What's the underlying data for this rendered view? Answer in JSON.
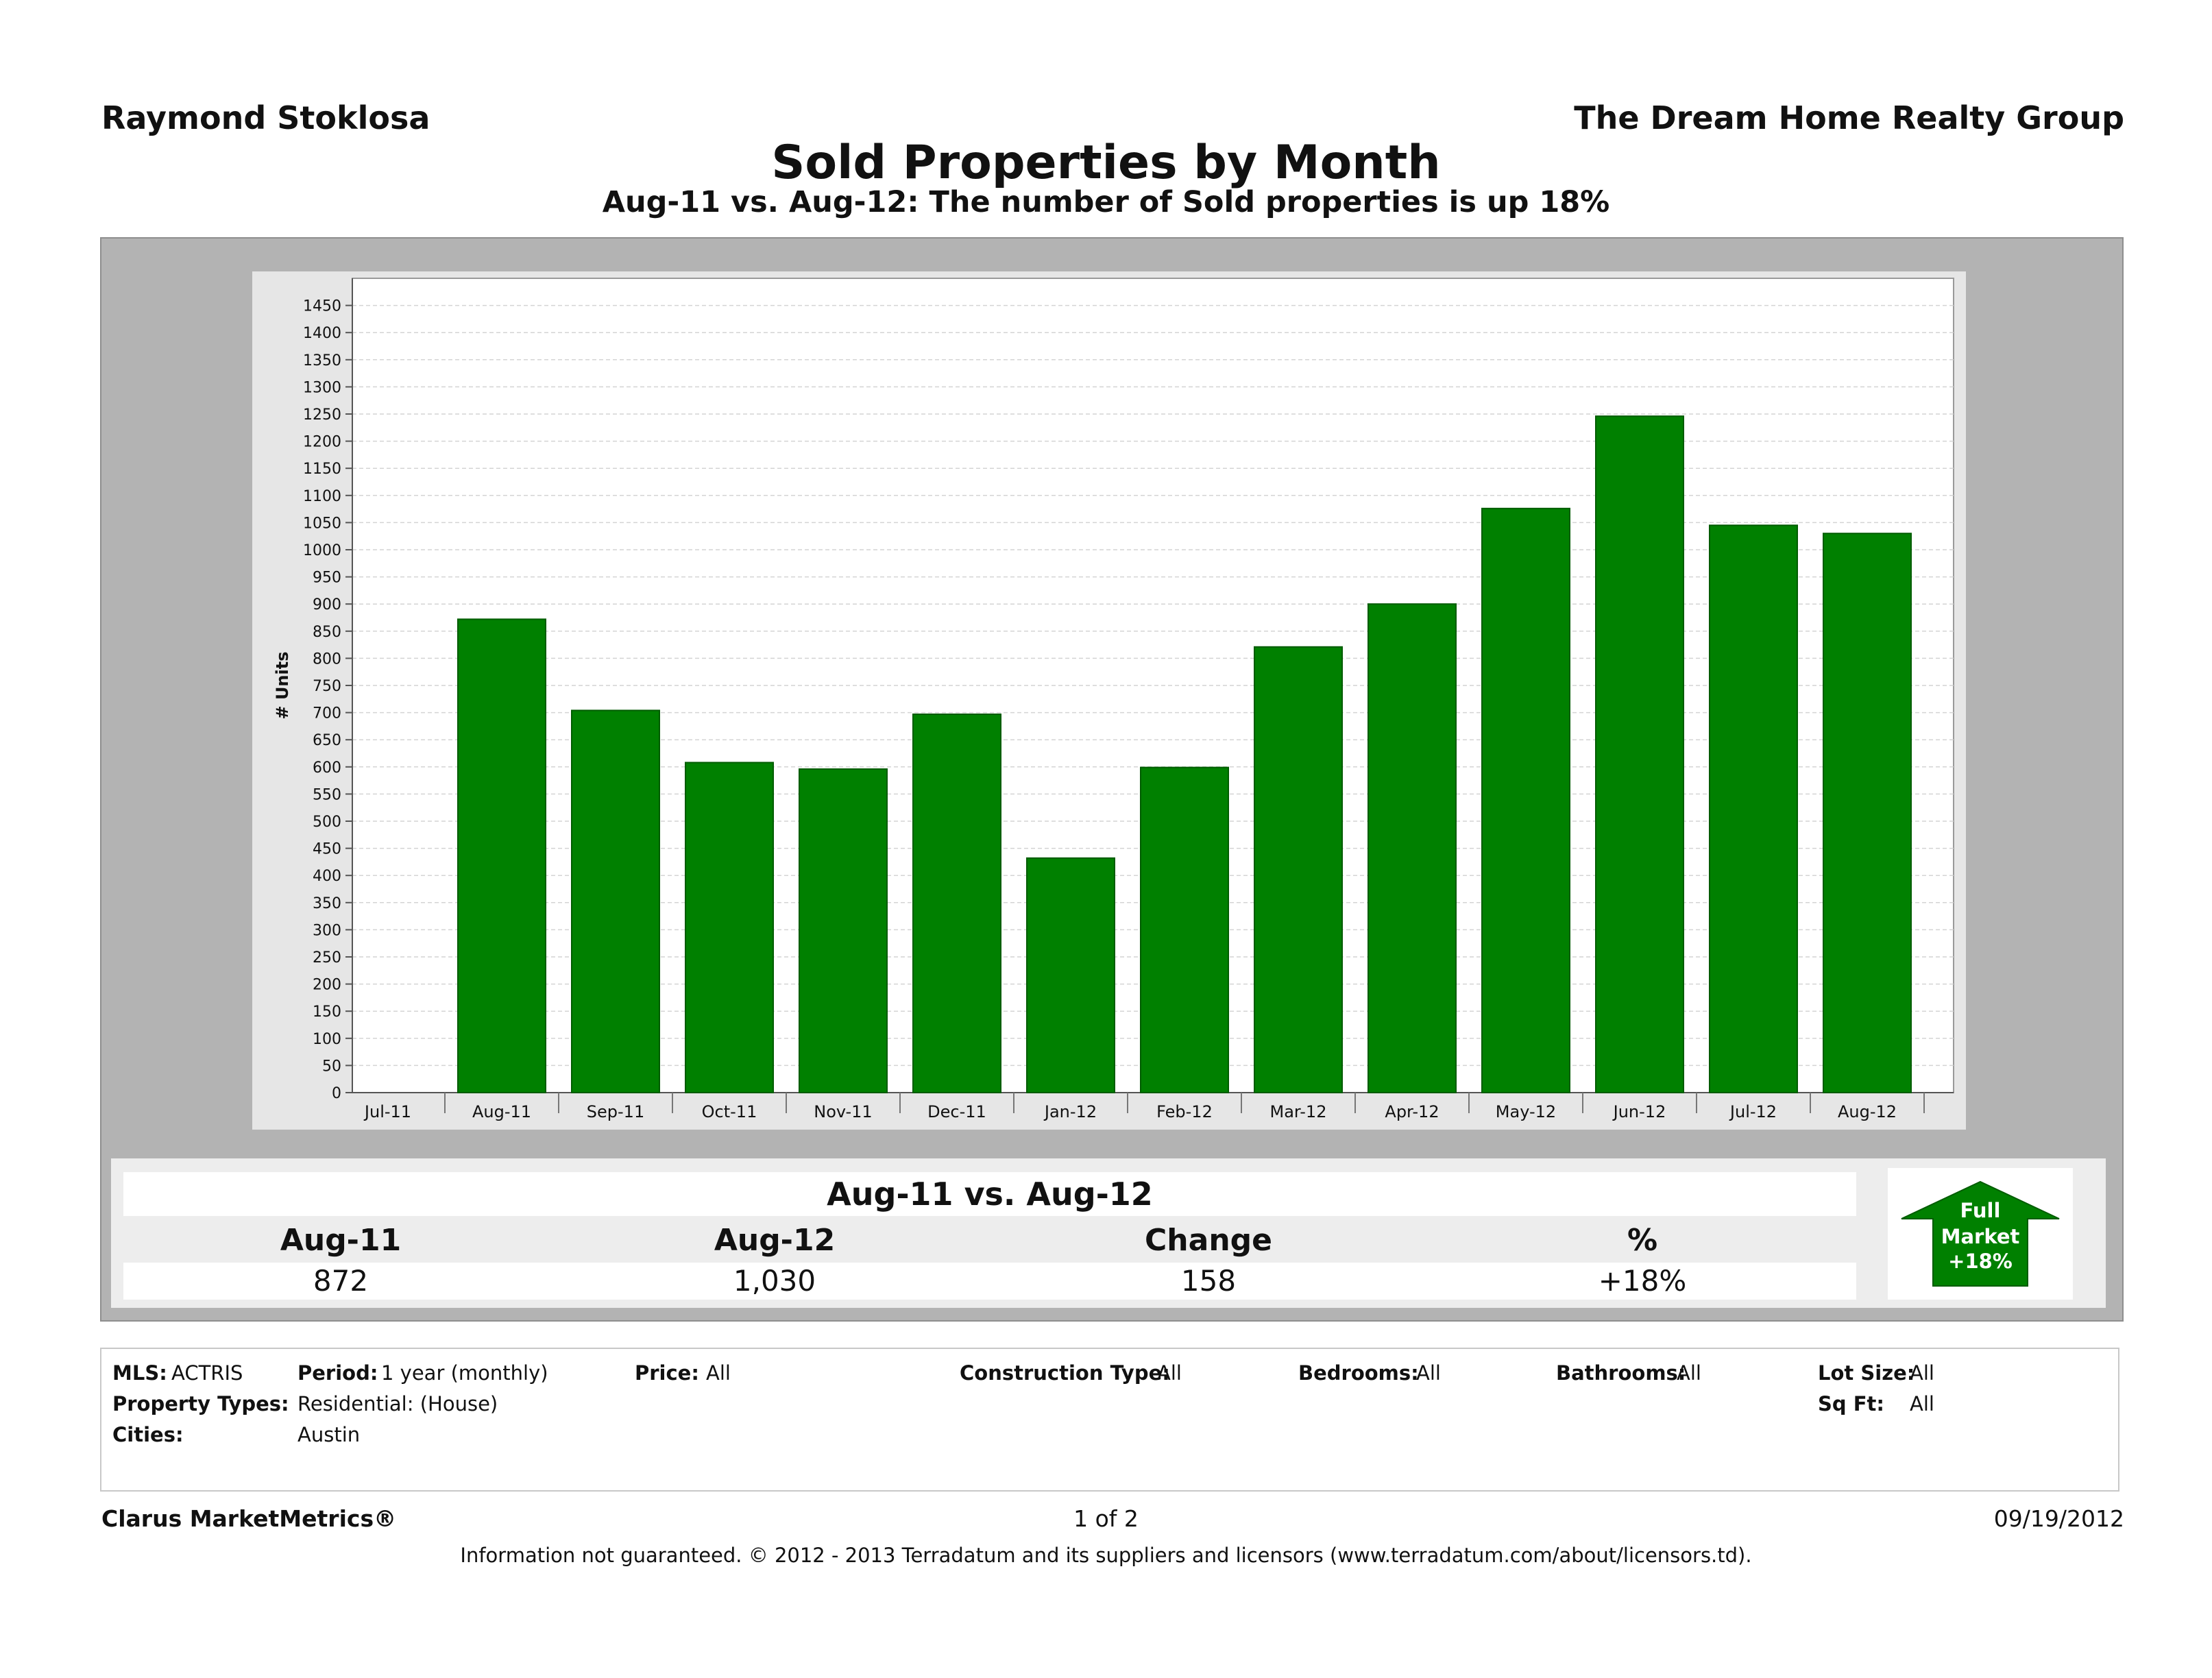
{
  "header": {
    "agent": "Raymond Stoklosa",
    "company": "The Dream Home Realty Group",
    "title": "Sold Properties by Month",
    "subtitle": "Aug-11 vs. Aug-12: The number of Sold properties is up 18%"
  },
  "colors": {
    "bar": "#008000",
    "bar_border": "#005c00",
    "panel": "#b3b3b3",
    "arrow": "#008000"
  },
  "chart_data": {
    "type": "bar",
    "ylabel": "# Units",
    "ylim": [
      0,
      1500
    ],
    "yticks": [
      0,
      50,
      100,
      150,
      200,
      250,
      300,
      350,
      400,
      450,
      500,
      550,
      600,
      650,
      700,
      750,
      800,
      850,
      900,
      950,
      1000,
      1050,
      1100,
      1150,
      1200,
      1250,
      1300,
      1350,
      1400,
      1450
    ],
    "categories": [
      "Jul-11",
      "Aug-11",
      "Sep-11",
      "Oct-11",
      "Nov-11",
      "Dec-11",
      "Jan-12",
      "Feb-12",
      "Mar-12",
      "Apr-12",
      "May-12",
      "Jun-12",
      "Jul-12",
      "Aug-12"
    ],
    "values": [
      null,
      872,
      704,
      608,
      596,
      697,
      432,
      599,
      821,
      900,
      1076,
      1246,
      1045,
      1030
    ],
    "grid": true
  },
  "summary": {
    "heading": "Aug-11 vs. Aug-12",
    "labels": [
      "Aug-11",
      "Aug-12",
      "Change",
      "%"
    ],
    "values": [
      "872",
      "1,030",
      "158",
      "+18%"
    ]
  },
  "badge": {
    "line1": "Full",
    "line2": "Market",
    "line3": "+18%"
  },
  "filters": {
    "mls_label": "MLS:",
    "mls_value": "ACTRIS",
    "period_label": "Period:",
    "period_value": "1 year (monthly)",
    "price_label": "Price:",
    "price_value": "All",
    "construction_label": "Construction Type:",
    "construction_value": "All",
    "bedrooms_label": "Bedrooms:",
    "bedrooms_value": "All",
    "bathrooms_label": "Bathrooms:",
    "bathrooms_value": "All",
    "lotsize_label": "Lot Size:",
    "lotsize_value": "All",
    "proptypes_label": "Property Types:",
    "proptypes_value": "Residential: (House)",
    "sqft_label": "Sq Ft:",
    "sqft_value": "All",
    "cities_label": "Cities:",
    "cities_value": "Austin"
  },
  "footer": {
    "brand": "Clarus MarketMetrics®",
    "page": "1 of 2",
    "date": "09/19/2012",
    "disclaimer": "Information not guaranteed.  © 2012 - 2013 Terradatum and its suppliers and licensors (www.terradatum.com/about/licensors.td)."
  }
}
